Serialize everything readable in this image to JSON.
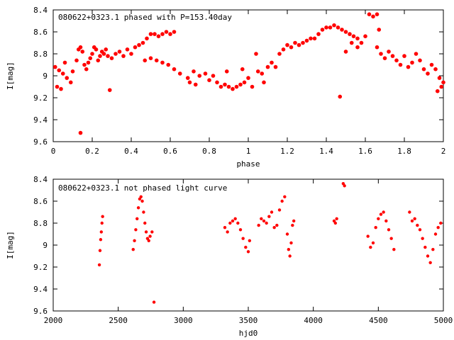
{
  "chart_data": [
    {
      "type": "scatter",
      "title": "080622+0323.1 phased with P=153.40day",
      "xlabel": "phase",
      "ylabel": "I[mag]",
      "xlim": [
        0,
        2
      ],
      "ylim": [
        9.6,
        8.4
      ],
      "y_inverted": true,
      "grid": false,
      "marker_color": "#ff0000",
      "xticks": [
        "0",
        "0.2",
        "0.4",
        "0.6",
        "0.8",
        "1",
        "1.2",
        "1.4",
        "1.6",
        "1.8",
        "2"
      ],
      "yticks": [
        "8.4",
        "8.6",
        "8.8",
        "9",
        "9.2",
        "9.4",
        "9.6"
      ],
      "points": [
        [
          0.01,
          8.92
        ],
        [
          0.02,
          9.1
        ],
        [
          0.03,
          8.95
        ],
        [
          0.04,
          9.12
        ],
        [
          0.05,
          8.98
        ],
        [
          0.06,
          8.88
        ],
        [
          0.07,
          9.02
        ],
        [
          0.09,
          9.06
        ],
        [
          0.1,
          8.96
        ],
        [
          0.12,
          8.86
        ],
        [
          0.13,
          8.76
        ],
        [
          0.14,
          8.74
        ],
        [
          0.15,
          8.78
        ],
        [
          0.16,
          8.9
        ],
        [
          0.17,
          8.94
        ],
        [
          0.18,
          8.88
        ],
        [
          0.19,
          8.84
        ],
        [
          0.2,
          8.8
        ],
        [
          0.21,
          8.74
        ],
        [
          0.22,
          8.76
        ],
        [
          0.23,
          8.86
        ],
        [
          0.24,
          8.82
        ],
        [
          0.25,
          8.78
        ],
        [
          0.26,
          8.8
        ],
        [
          0.27,
          8.76
        ],
        [
          0.28,
          8.82
        ],
        [
          0.3,
          8.84
        ],
        [
          0.32,
          8.8
        ],
        [
          0.34,
          8.78
        ],
        [
          0.36,
          8.82
        ],
        [
          0.38,
          8.76
        ],
        [
          0.4,
          8.8
        ],
        [
          0.42,
          8.74
        ],
        [
          0.44,
          8.72
        ],
        [
          0.46,
          8.7
        ],
        [
          0.48,
          8.66
        ],
        [
          0.5,
          8.62
        ],
        [
          0.52,
          8.62
        ],
        [
          0.54,
          8.64
        ],
        [
          0.56,
          8.62
        ],
        [
          0.58,
          8.6
        ],
        [
          0.6,
          8.62
        ],
        [
          0.62,
          8.6
        ],
        [
          0.47,
          8.86
        ],
        [
          0.5,
          8.84
        ],
        [
          0.53,
          8.86
        ],
        [
          0.56,
          8.88
        ],
        [
          0.59,
          8.9
        ],
        [
          0.62,
          8.94
        ],
        [
          0.65,
          8.98
        ],
        [
          0.14,
          9.52
        ],
        [
          0.29,
          9.13
        ],
        [
          0.69,
          9.02
        ],
        [
          0.7,
          9.06
        ],
        [
          0.72,
          8.96
        ],
        [
          0.73,
          9.08
        ],
        [
          0.75,
          9.0
        ],
        [
          0.78,
          8.98
        ],
        [
          0.8,
          9.04
        ],
        [
          0.82,
          9.0
        ],
        [
          0.84,
          9.06
        ],
        [
          0.86,
          9.1
        ],
        [
          0.88,
          9.08
        ],
        [
          0.89,
          8.96
        ],
        [
          0.9,
          9.1
        ],
        [
          0.92,
          9.12
        ],
        [
          0.94,
          9.1
        ],
        [
          0.96,
          9.08
        ],
        [
          0.97,
          8.94
        ],
        [
          0.98,
          9.06
        ],
        [
          1.0,
          9.02
        ],
        [
          1.02,
          9.1
        ],
        [
          1.04,
          8.8
        ],
        [
          1.05,
          8.96
        ],
        [
          1.07,
          8.98
        ],
        [
          1.08,
          9.06
        ],
        [
          1.1,
          8.92
        ],
        [
          1.12,
          8.88
        ],
        [
          1.14,
          8.92
        ],
        [
          1.16,
          8.8
        ],
        [
          1.18,
          8.76
        ],
        [
          1.2,
          8.72
        ],
        [
          1.22,
          8.74
        ],
        [
          1.24,
          8.7
        ],
        [
          1.26,
          8.72
        ],
        [
          1.28,
          8.7
        ],
        [
          1.3,
          8.68
        ],
        [
          1.32,
          8.66
        ],
        [
          1.34,
          8.66
        ],
        [
          1.36,
          8.62
        ],
        [
          1.38,
          8.58
        ],
        [
          1.4,
          8.56
        ],
        [
          1.42,
          8.56
        ],
        [
          1.44,
          8.54
        ],
        [
          1.46,
          8.56
        ],
        [
          1.48,
          8.58
        ],
        [
          1.5,
          8.6
        ],
        [
          1.52,
          8.62
        ],
        [
          1.54,
          8.64
        ],
        [
          1.56,
          8.66
        ],
        [
          1.58,
          8.7
        ],
        [
          1.6,
          8.64
        ],
        [
          1.62,
          8.44
        ],
        [
          1.64,
          8.46
        ],
        [
          1.66,
          8.44
        ],
        [
          1.67,
          8.58
        ],
        [
          1.66,
          8.74
        ],
        [
          1.68,
          8.8
        ],
        [
          1.7,
          8.84
        ],
        [
          1.72,
          8.78
        ],
        [
          1.74,
          8.82
        ],
        [
          1.76,
          8.86
        ],
        [
          1.78,
          8.9
        ],
        [
          1.8,
          8.82
        ],
        [
          1.82,
          8.92
        ],
        [
          1.84,
          8.88
        ],
        [
          1.86,
          8.8
        ],
        [
          1.88,
          8.86
        ],
        [
          1.9,
          8.94
        ],
        [
          1.92,
          8.98
        ],
        [
          1.94,
          8.9
        ],
        [
          1.96,
          8.94
        ],
        [
          1.98,
          9.02
        ],
        [
          2.0,
          9.06
        ],
        [
          1.97,
          9.14
        ],
        [
          1.99,
          9.1
        ],
        [
          1.47,
          9.19
        ],
        [
          1.5,
          8.78
        ],
        [
          1.53,
          8.7
        ],
        [
          1.56,
          8.74
        ]
      ]
    },
    {
      "type": "scatter",
      "title": "080622+0323.1 not phased light curve",
      "xlabel": "hjd0",
      "ylabel": "I[mag]",
      "xlim": [
        2000,
        5000
      ],
      "ylim": [
        9.6,
        8.4
      ],
      "y_inverted": true,
      "grid": false,
      "marker_color": "#ff0000",
      "xticks": [
        "2000",
        "2500",
        "3000",
        "3500",
        "4000",
        "4500",
        "5000"
      ],
      "yticks": [
        "8.4",
        "8.6",
        "8.8",
        "9",
        "9.2",
        "9.4",
        "9.6"
      ],
      "points": [
        [
          2355,
          9.18
        ],
        [
          2360,
          9.05
        ],
        [
          2365,
          8.95
        ],
        [
          2370,
          8.88
        ],
        [
          2375,
          8.8
        ],
        [
          2380,
          8.74
        ],
        [
          2615,
          9.04
        ],
        [
          2625,
          8.96
        ],
        [
          2635,
          8.86
        ],
        [
          2645,
          8.76
        ],
        [
          2655,
          8.66
        ],
        [
          2665,
          8.58
        ],
        [
          2675,
          8.56
        ],
        [
          2685,
          8.6
        ],
        [
          2695,
          8.7
        ],
        [
          2705,
          8.8
        ],
        [
          2715,
          8.88
        ],
        [
          2725,
          8.94
        ],
        [
          2735,
          8.96
        ],
        [
          2745,
          8.92
        ],
        [
          2760,
          8.88
        ],
        [
          2775,
          9.52
        ],
        [
          3320,
          8.84
        ],
        [
          3340,
          8.88
        ],
        [
          3360,
          8.8
        ],
        [
          3380,
          8.78
        ],
        [
          3400,
          8.76
        ],
        [
          3420,
          8.8
        ],
        [
          3440,
          8.86
        ],
        [
          3460,
          8.94
        ],
        [
          3480,
          9.02
        ],
        [
          3500,
          9.06
        ],
        [
          3510,
          8.96
        ],
        [
          3580,
          8.82
        ],
        [
          3600,
          8.76
        ],
        [
          3620,
          8.78
        ],
        [
          3640,
          8.8
        ],
        [
          3660,
          8.74
        ],
        [
          3680,
          8.7
        ],
        [
          3700,
          8.84
        ],
        [
          3720,
          8.82
        ],
        [
          3740,
          8.68
        ],
        [
          3760,
          8.6
        ],
        [
          3780,
          8.56
        ],
        [
          3800,
          8.9
        ],
        [
          3810,
          9.04
        ],
        [
          3820,
          9.1
        ],
        [
          3830,
          8.98
        ],
        [
          3840,
          8.82
        ],
        [
          3850,
          8.78
        ],
        [
          4160,
          8.78
        ],
        [
          4170,
          8.8
        ],
        [
          4180,
          8.76
        ],
        [
          4230,
          8.44
        ],
        [
          4240,
          8.46
        ],
        [
          4420,
          8.92
        ],
        [
          4440,
          9.02
        ],
        [
          4460,
          8.98
        ],
        [
          4480,
          8.84
        ],
        [
          4500,
          8.76
        ],
        [
          4520,
          8.72
        ],
        [
          4540,
          8.7
        ],
        [
          4560,
          8.78
        ],
        [
          4580,
          8.86
        ],
        [
          4600,
          8.94
        ],
        [
          4620,
          9.04
        ],
        [
          4740,
          8.7
        ],
        [
          4760,
          8.78
        ],
        [
          4780,
          8.76
        ],
        [
          4800,
          8.82
        ],
        [
          4820,
          8.86
        ],
        [
          4840,
          8.94
        ],
        [
          4860,
          9.02
        ],
        [
          4880,
          9.1
        ],
        [
          4900,
          9.16
        ],
        [
          4920,
          9.04
        ],
        [
          4940,
          8.9
        ],
        [
          4960,
          8.84
        ],
        [
          4980,
          8.8
        ]
      ]
    }
  ]
}
